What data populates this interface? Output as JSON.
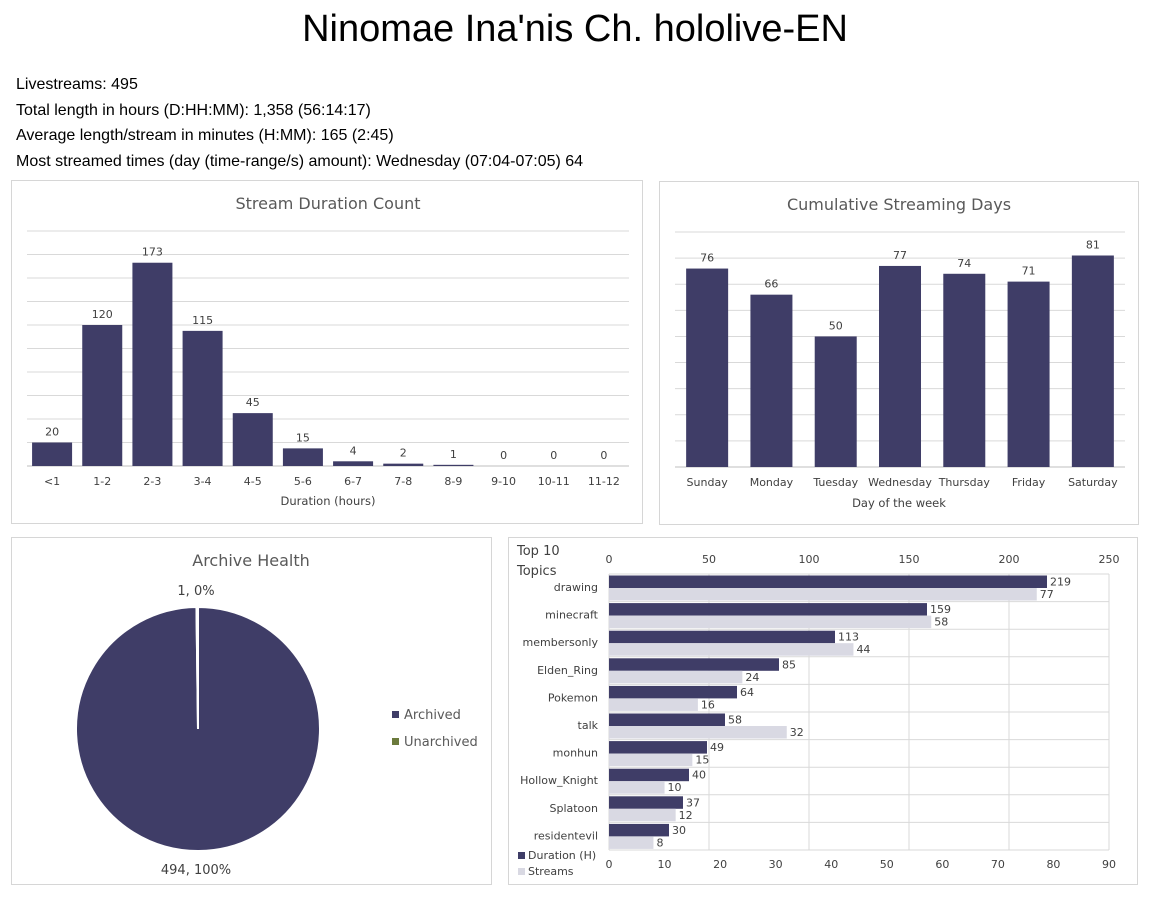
{
  "page": {
    "title": "Ninomae Ina'nis Ch. hololive-EN",
    "stats": [
      "Livestreams: 495",
      "Total length in hours (D:HH:MM): 1,358 (56:14:17)",
      "Average length/stream in minutes (H:MM): 165 (2:45)",
      "Most streamed times (day (time-range/s) amount): Wednesday (07:04-07:05) 64"
    ]
  },
  "colors": {
    "primary": "#3f3d67",
    "secondary": "#d9d9e3",
    "grid": "#d9d9d9",
    "accent_green": "#6b7a3c"
  },
  "chart_data": [
    {
      "type": "bar",
      "title": "Stream Duration Count",
      "xlabel": "Duration (hours)",
      "ylabel": "",
      "categories": [
        "<1",
        "1-2",
        "2-3",
        "3-4",
        "4-5",
        "5-6",
        "6-7",
        "7-8",
        "8-9",
        "9-10",
        "10-11",
        "11-12"
      ],
      "values": [
        20,
        120,
        173,
        115,
        45,
        15,
        4,
        2,
        1,
        0,
        0,
        0
      ],
      "ylim": [
        0,
        200
      ],
      "grid": true
    },
    {
      "type": "bar",
      "title": "Cumulative Streaming Days",
      "xlabel": "Day of the week",
      "ylabel": "",
      "categories": [
        "Sunday",
        "Monday",
        "Tuesday",
        "Wednesday",
        "Thursday",
        "Friday",
        "Saturday"
      ],
      "values": [
        76,
        66,
        50,
        77,
        74,
        71,
        81
      ],
      "ylim": [
        0,
        90
      ],
      "grid": true
    },
    {
      "type": "pie",
      "title": "Archive Health",
      "labels": [
        "Archived",
        "Unarchived"
      ],
      "values": [
        494,
        1
      ],
      "data_labels": [
        "494, 100%",
        "1, 0%"
      ],
      "legend": "right"
    },
    {
      "type": "bar",
      "orientation": "horizontal",
      "title": "Top 10 Topics",
      "categories": [
        "drawing",
        "minecraft",
        "membersonly",
        "Elden_Ring",
        "Pokemon",
        "talk",
        "monhun",
        "Hollow_Knight",
        "Splatoon",
        "residentevil"
      ],
      "series": [
        {
          "name": "Duration (H)",
          "values": [
            219,
            159,
            113,
            85,
            64,
            58,
            49,
            40,
            37,
            30
          ],
          "axis": "top"
        },
        {
          "name": "Streams",
          "values": [
            77,
            58,
            44,
            24,
            16,
            32,
            15,
            10,
            12,
            8
          ],
          "axis": "bottom"
        }
      ],
      "top_axis": {
        "range": [
          0,
          250
        ],
        "ticks": [
          0,
          50,
          100,
          150,
          200,
          250
        ]
      },
      "bottom_axis": {
        "range": [
          0,
          90
        ],
        "ticks": [
          0,
          10,
          20,
          30,
          40,
          50,
          60,
          70,
          80,
          90
        ]
      },
      "legend": "bottom-left",
      "grid": true
    }
  ]
}
